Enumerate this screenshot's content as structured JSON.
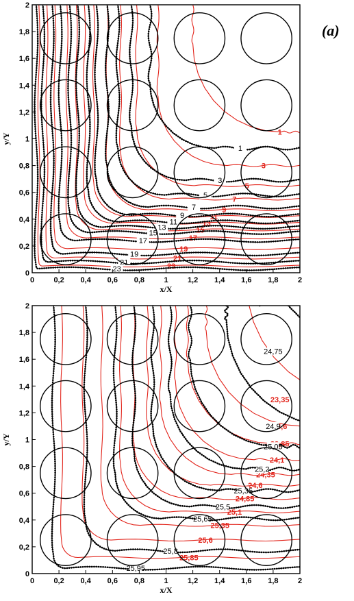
{
  "panel_tag": "(a)",
  "colors": {
    "simulation": "#e2231a",
    "model": "#000000",
    "background": "#ffffff"
  },
  "chart_data": [
    {
      "type": "contour",
      "title": "",
      "xlabel": "x/X",
      "ylabel": "y/Y",
      "xlim": [
        0,
        2
      ],
      "ylim": [
        0,
        2
      ],
      "xticks": [
        "0",
        "0,2",
        "0,4",
        "0,6",
        "0,8",
        "1",
        "1,2",
        "1,4",
        "1,6",
        "1,8",
        "2"
      ],
      "yticks": [
        "0",
        "0,2",
        "0,4",
        "0,6",
        "0,8",
        "1",
        "1,2",
        "1,4",
        "1,6",
        "1,8",
        "2"
      ],
      "grid": false,
      "cylinders": [
        {
          "x": 0.25,
          "y": 0.25
        },
        {
          "x": 0.75,
          "y": 0.25
        },
        {
          "x": 1.25,
          "y": 0.25
        },
        {
          "x": 1.75,
          "y": 0.25
        },
        {
          "x": 0.25,
          "y": 0.75
        },
        {
          "x": 0.75,
          "y": 0.75
        },
        {
          "x": 1.25,
          "y": 0.75
        },
        {
          "x": 1.75,
          "y": 0.75
        },
        {
          "x": 0.25,
          "y": 1.25
        },
        {
          "x": 0.75,
          "y": 1.25
        },
        {
          "x": 1.25,
          "y": 1.25
        },
        {
          "x": 1.75,
          "y": 1.25
        },
        {
          "x": 0.25,
          "y": 1.75
        },
        {
          "x": 0.75,
          "y": 1.75
        },
        {
          "x": 1.25,
          "y": 1.75
        },
        {
          "x": 1.75,
          "y": 1.75
        }
      ],
      "cylinder_radius": 0.19,
      "black_levels": [
        {
          "label": "1",
          "y_tail": 0.93,
          "x_corner": 0.88
        },
        {
          "label": "3",
          "y_tail": 0.69,
          "x_corner": 0.74
        },
        {
          "label": "5",
          "y_tail": 0.58,
          "x_corner": 0.64
        },
        {
          "label": "7",
          "y_tail": 0.49,
          "x_corner": 0.56
        },
        {
          "label": "9",
          "y_tail": 0.43,
          "x_corner": 0.48
        },
        {
          "label": "11",
          "y_tail": 0.38,
          "x_corner": 0.42
        },
        {
          "label": "13",
          "y_tail": 0.34,
          "x_corner": 0.34
        },
        {
          "label": "15",
          "y_tail": 0.3,
          "x_corner": 0.28
        },
        {
          "label": "17",
          "y_tail": 0.24,
          "x_corner": 0.21
        },
        {
          "label": "19",
          "y_tail": 0.14,
          "x_corner": 0.15
        },
        {
          "label": "21",
          "y_tail": 0.08,
          "x_corner": 0.08
        },
        {
          "label": "23",
          "y_tail": 0.03,
          "x_corner": 0.03
        }
      ],
      "red_levels": [
        {
          "label": "1",
          "y_tail": 1.05,
          "x_corner": 1.2
        },
        {
          "label": "3",
          "y_tail": 0.8,
          "x_corner": 0.94
        },
        {
          "label": "5",
          "y_tail": 0.65,
          "x_corner": 0.78
        },
        {
          "label": "7",
          "y_tail": 0.55,
          "x_corner": 0.66
        },
        {
          "label": "9",
          "y_tail": 0.47,
          "x_corner": 0.56
        },
        {
          "label": "11",
          "y_tail": 0.42,
          "x_corner": 0.46
        },
        {
          "label": "13",
          "y_tail": 0.37,
          "x_corner": 0.39
        },
        {
          "label": "15",
          "y_tail": 0.32,
          "x_corner": 0.33
        },
        {
          "label": "17",
          "y_tail": 0.26,
          "x_corner": 0.26
        },
        {
          "label": "19",
          "y_tail": 0.18,
          "x_corner": 0.17
        },
        {
          "label": "21",
          "y_tail": 0.11,
          "x_corner": 0.11
        },
        {
          "label": "23",
          "y_tail": 0.05,
          "x_corner": 0.05
        }
      ]
    },
    {
      "type": "contour",
      "title": "",
      "xlabel": "x/X",
      "ylabel": "y/Y",
      "xlim": [
        0,
        2
      ],
      "ylim": [
        0,
        2
      ],
      "xticks": [
        "0",
        "0,2",
        "0,4",
        "0,6",
        "0,8",
        "1",
        "1,2",
        "1,4",
        "1,6",
        "1,8",
        "2"
      ],
      "yticks": [
        "0",
        "0,2",
        "0,4",
        "0,6",
        "0,8",
        "1",
        "1,2",
        "1,4",
        "1,6",
        "1,8",
        "2"
      ],
      "grid": false,
      "cylinders": [
        {
          "x": 0.25,
          "y": 0.25
        },
        {
          "x": 0.75,
          "y": 0.25
        },
        {
          "x": 1.25,
          "y": 0.25
        },
        {
          "x": 1.75,
          "y": 0.25
        },
        {
          "x": 0.25,
          "y": 0.75
        },
        {
          "x": 0.75,
          "y": 0.75
        },
        {
          "x": 1.25,
          "y": 0.75
        },
        {
          "x": 1.75,
          "y": 0.75
        },
        {
          "x": 0.25,
          "y": 1.25
        },
        {
          "x": 0.75,
          "y": 1.25
        },
        {
          "x": 1.25,
          "y": 1.25
        },
        {
          "x": 1.75,
          "y": 1.25
        },
        {
          "x": 0.25,
          "y": 1.75
        },
        {
          "x": 0.75,
          "y": 1.75
        },
        {
          "x": 1.25,
          "y": 1.75
        },
        {
          "x": 1.75,
          "y": 1.75
        }
      ],
      "cylinder_radius": 0.19,
      "black_levels": [
        {
          "label": "24,75",
          "y_tail": 1.66,
          "x_corner": 1.7
        },
        {
          "label": "24,9",
          "y_tail": 1.1,
          "x_corner": 1.45
        },
        {
          "label": "25,05",
          "y_tail": 0.95,
          "x_corner": 1.18
        },
        {
          "label": "25,2",
          "y_tail": 0.78,
          "x_corner": 1.03
        },
        {
          "label": "25,35",
          "y_tail": 0.62,
          "x_corner": 0.9
        },
        {
          "label": "25,5",
          "y_tail": 0.5,
          "x_corner": 0.76
        },
        {
          "label": "25,65",
          "y_tail": 0.41,
          "x_corner": 0.62
        },
        {
          "label": "25,8",
          "y_tail": 0.17,
          "x_corner": 0.4
        },
        {
          "label": "25,95",
          "y_tail": 0.04,
          "x_corner": 0.16
        }
      ],
      "red_levels": [
        {
          "label": "23,35",
          "y_tail": 1.3,
          "x_corner": 1.6
        },
        {
          "label": "23,6",
          "y_tail": 1.1,
          "x_corner": 1.3
        },
        {
          "label": "23,85",
          "y_tail": 0.97,
          "x_corner": 1.16
        },
        {
          "label": "24,1",
          "y_tail": 0.85,
          "x_corner": 1.07
        },
        {
          "label": "24,35",
          "y_tail": 0.74,
          "x_corner": 0.96
        },
        {
          "label": "24,6",
          "y_tail": 0.66,
          "x_corner": 0.86
        },
        {
          "label": "24,85",
          "y_tail": 0.56,
          "x_corner": 0.76
        },
        {
          "label": "25,1",
          "y_tail": 0.46,
          "x_corner": 0.66
        },
        {
          "label": "25,35",
          "y_tail": 0.36,
          "x_corner": 0.52
        },
        {
          "label": "25,6",
          "y_tail": 0.25,
          "x_corner": 0.38
        },
        {
          "label": "25,85",
          "y_tail": 0.12,
          "x_corner": 0.22
        }
      ]
    }
  ]
}
